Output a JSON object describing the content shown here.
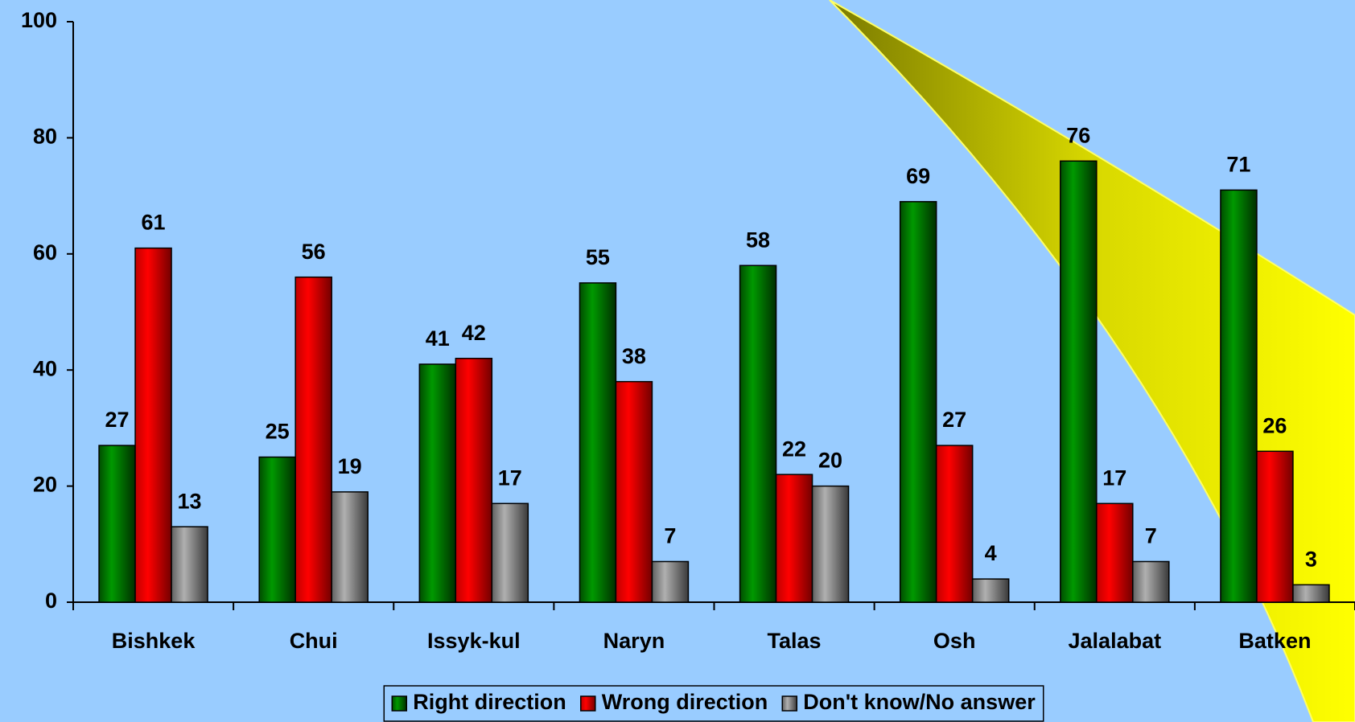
{
  "chart_data": {
    "type": "bar",
    "categories": [
      "Bishkek",
      "Chui",
      "Issyk-kul",
      "Naryn",
      "Talas",
      "Osh",
      "Jalalabat",
      "Batken"
    ],
    "series": [
      {
        "name": "Right direction",
        "color": "#006600",
        "values": [
          27,
          25,
          41,
          55,
          58,
          69,
          76,
          71
        ]
      },
      {
        "name": "Wrong direction",
        "color": "#ff0000",
        "values": [
          61,
          56,
          42,
          38,
          22,
          27,
          17,
          26
        ]
      },
      {
        "name": "Don't know/No answer",
        "color": "#808080",
        "values": [
          13,
          19,
          17,
          7,
          20,
          4,
          7,
          3
        ]
      }
    ],
    "ylim": [
      0,
      100
    ],
    "yticks": [
      0,
      20,
      40,
      60,
      80,
      100
    ],
    "legend": "bottom"
  }
}
